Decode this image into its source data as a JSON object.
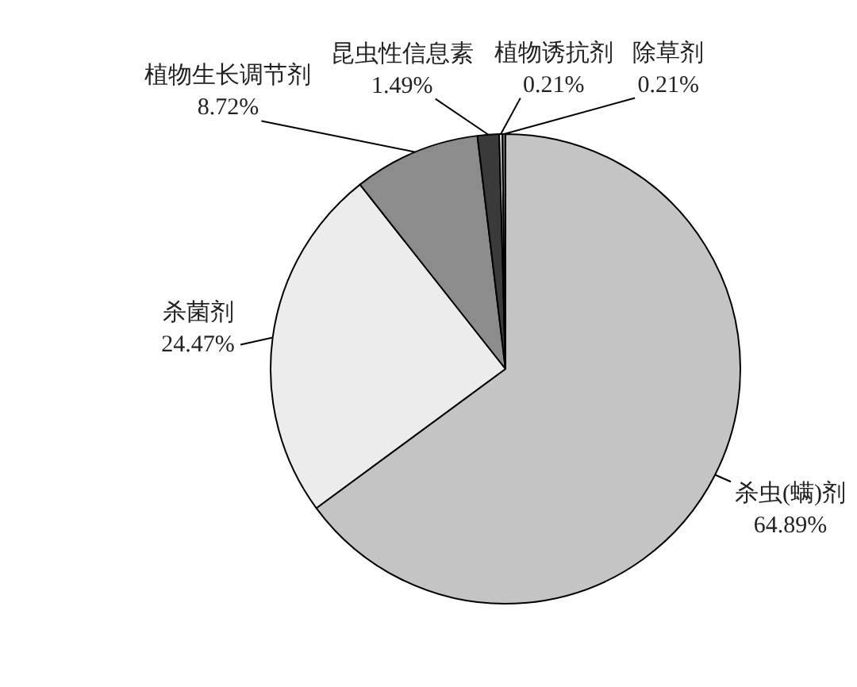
{
  "chart_data": {
    "type": "pie",
    "categories": [
      "杀虫(螨)剂",
      "杀菌剂",
      "植物生长调节剂",
      "昆虫性信息素",
      "植物诱抗剂",
      "除草剂"
    ],
    "values": [
      64.89,
      24.47,
      8.72,
      1.49,
      0.21,
      0.21
    ],
    "value_labels": [
      "64.89%",
      "24.47%",
      "8.72%",
      "1.49%",
      "0.21%",
      "0.21%"
    ],
    "colors": [
      "#c4c4c4",
      "#ececec",
      "#8c8c8c",
      "#3a3a3a",
      "#ffffff",
      "#6e6e6e"
    ]
  }
}
